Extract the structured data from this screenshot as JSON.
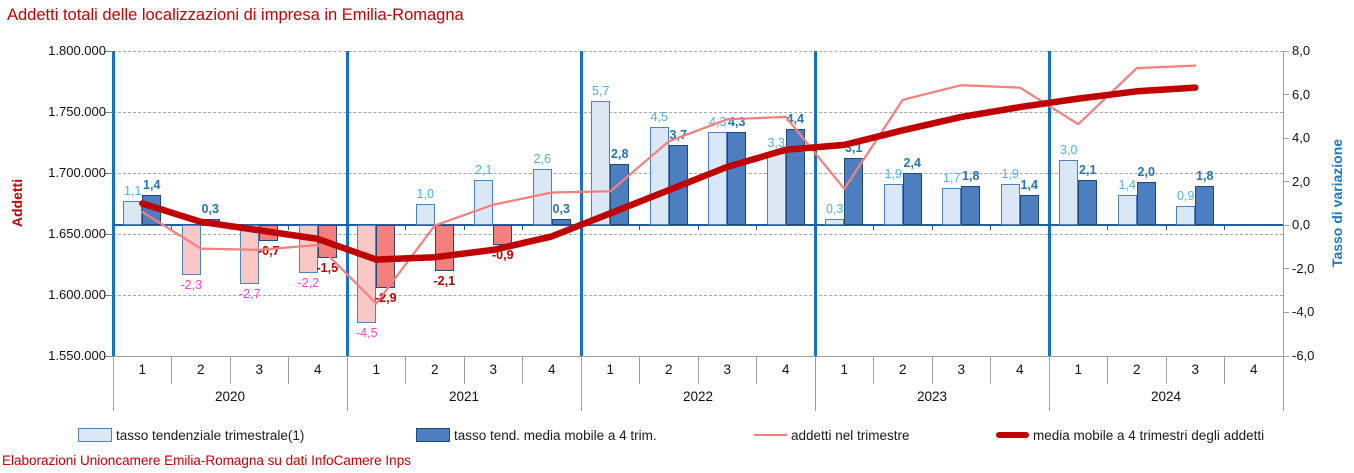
{
  "title": "Addetti totali delle localizzazioni di impresa in Emilia-Romagna",
  "footer": "Elaborazioni Unioncamere Emilia-Romagna su dati InfoCamere Inps",
  "chart_data": {
    "type": "combo-bar-line",
    "left_axis": {
      "label": "Addetti",
      "min": 1550000,
      "max": 1800000,
      "step": 50000,
      "ticks": [
        "1.800.000",
        "1.750.000",
        "1.700.000",
        "1.650.000",
        "1.600.000",
        "1.550.000"
      ]
    },
    "right_axis": {
      "label": "Tasso di variazione",
      "min": -6.0,
      "max": 8.0,
      "step": 2.0,
      "ticks": [
        "8,0",
        "6,0",
        "4,0",
        "2,0",
        "0,0",
        "-2,0",
        "-4,0",
        "-6,0"
      ]
    },
    "years": [
      "2020",
      "2021",
      "2022",
      "2023",
      "2024"
    ],
    "quarters_per_year": [
      "1",
      "2",
      "3",
      "4"
    ],
    "grid": "dashed-horizontal",
    "legend_position": "bottom",
    "series": [
      {
        "name": "tasso tendenziale trimestrale(1)",
        "type": "bar",
        "axis": "right",
        "values": [
          1.1,
          -2.3,
          -2.7,
          -2.2,
          -4.5,
          1.0,
          2.1,
          2.6,
          5.7,
          4.5,
          4.3,
          3.3,
          0.3,
          1.9,
          1.7,
          1.9,
          3.0,
          1.4,
          0.9,
          null
        ],
        "labels": [
          "1,1",
          "-2,3",
          "-2,7",
          "-2,2",
          "-4,5",
          "1,0",
          "2,1",
          "2,6",
          "5,7",
          "4,5",
          "4,3",
          "3,3",
          "0,3",
          "1,9",
          "1,7",
          "1,9",
          "3,0",
          "1,4",
          "0,9",
          null
        ]
      },
      {
        "name": "tasso tend. media mobile a 4 trim.",
        "type": "bar",
        "axis": "right",
        "values": [
          1.4,
          0.3,
          -0.7,
          -1.5,
          -2.9,
          -2.1,
          -0.9,
          0.3,
          2.8,
          3.7,
          4.3,
          4.4,
          3.1,
          2.4,
          1.8,
          1.4,
          2.1,
          2.0,
          1.8,
          null
        ],
        "labels": [
          "1,4",
          "0,3",
          "-0,7",
          "-1,5",
          "-2,9",
          "-2,1",
          "-0,9",
          "0,3",
          "2,8",
          "3,7",
          "4,3",
          "4,4",
          "3,1",
          "2,4",
          "1,8",
          "1,4",
          "2,1",
          "2,0",
          "1,8",
          null
        ]
      },
      {
        "name": "addetti nel trimestre",
        "type": "line",
        "axis": "left",
        "values": [
          1668000,
          1638000,
          1637000,
          1641000,
          1593000,
          1657000,
          1674000,
          1684000,
          1685000,
          1726000,
          1744000,
          1746000,
          1687000,
          1760000,
          1772000,
          1770000,
          1740000,
          1786000,
          1788000,
          null
        ]
      },
      {
        "name": "media mobile a 4 trimestri degli addetti",
        "type": "line",
        "axis": "left",
        "values": [
          1675000,
          1660000,
          1653000,
          1646000,
          1629000,
          1631000,
          1637000,
          1648000,
          1667000,
          1686000,
          1705000,
          1719000,
          1723000,
          1735000,
          1746000,
          1754000,
          1761000,
          1767000,
          1770000,
          null
        ]
      }
    ],
    "legend": [
      {
        "label": "tasso tendenziale trimestrale(1)",
        "swatch": "bar-light"
      },
      {
        "label": "tasso tend. media mobile a 4 trim.",
        "swatch": "bar-dark"
      },
      {
        "label": "addetti nel trimestre",
        "swatch": "line-thin"
      },
      {
        "label": "media mobile a 4 trimestri degli addetti",
        "swatch": "line-thick"
      }
    ]
  },
  "colors": {
    "title_text": "#cc0000",
    "footer_text": "#cc0000",
    "bar_tend_pos_fill": "#dae8f5",
    "bar_tend_neg_fill": "#f9c7c6",
    "bar_tend_border": "#4f81bd",
    "bar_mm_pos_fill": "#4d7ebf",
    "bar_mm_neg_fill": "#f4807e",
    "bar_mm_border": "#1f497d",
    "line_addetti": "#f4807e",
    "line_media_mobile": "#c00000",
    "label_tend_pos": "#4cb0e8",
    "label_tend_neg": "#ff40c9",
    "label_mm_pos": "#2275bb",
    "label_mm_neg": "#c00000",
    "year_separator": "#1473c4",
    "left_axis_line": "#1473c4",
    "zero_line": "#1f5fa5",
    "gridline": "#a6a6a6",
    "band_line": "#9e9e9e",
    "tick_text": "#111111",
    "left_axis_title": "#c00000",
    "right_axis_title": "#1f78c1"
  }
}
